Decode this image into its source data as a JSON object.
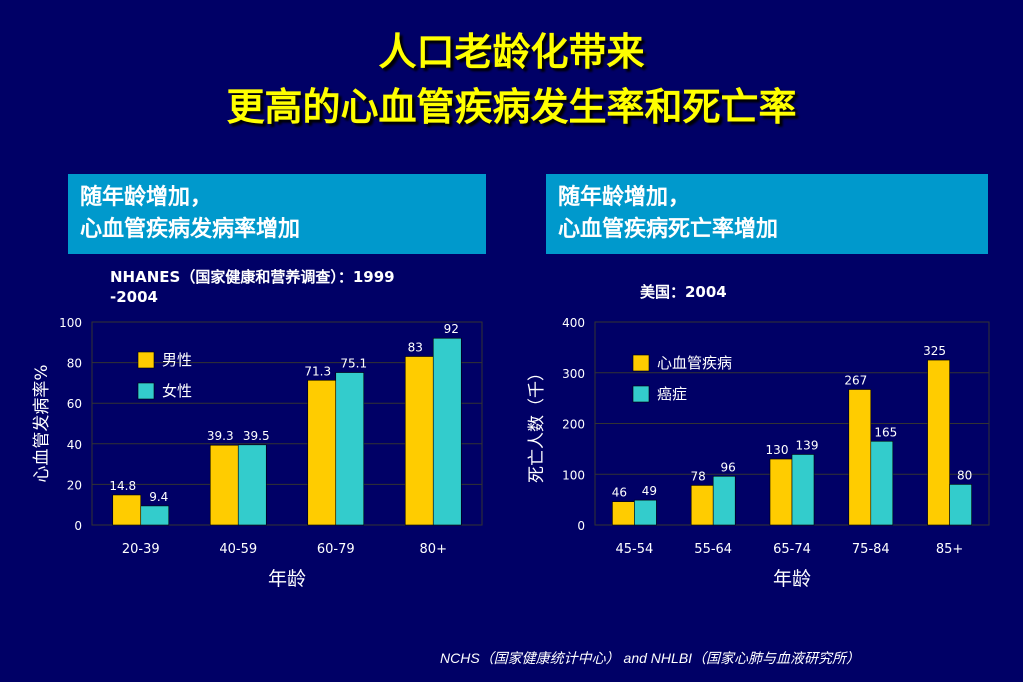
{
  "title": {
    "line1": "人口老龄化带来",
    "line2": "更高的心血管疾病发生率和死亡率"
  },
  "panels": [
    {
      "line1": "随年龄增加，",
      "line2": "心血管疾病发病率增加"
    },
    {
      "line1": "随年龄增加，",
      "line2": "心血管疾病死亡率增加"
    }
  ],
  "footer": "NCHS（国家健康统计中心） and NHLBI（国家心肺与血液研究所）",
  "colors": {
    "series1": "#ffcc00",
    "series2": "#33cccc",
    "background": "#000066",
    "panel": "#0099cc",
    "title": "#ffff00"
  },
  "chart_data": [
    {
      "type": "bar",
      "source_label": "NHANES（国家健康和营养调查）：1999-2004",
      "categories": [
        "20-39",
        "40-59",
        "60-79",
        "80+"
      ],
      "series": [
        {
          "name": "男性",
          "values": [
            14.8,
            39.3,
            71.3,
            83
          ],
          "labels": [
            "14.8",
            "39.3",
            "71.3",
            "83"
          ]
        },
        {
          "name": "女性",
          "values": [
            9.4,
            39.5,
            75.1,
            92
          ],
          "labels": [
            "9.4",
            "39.5",
            "75.1",
            "92"
          ]
        }
      ],
      "xlabel": "年龄",
      "ylabel": "心血管发病率%",
      "ylim": [
        0,
        100
      ],
      "yticks": [
        0,
        20,
        40,
        60,
        80,
        100
      ],
      "grid": true,
      "legend_position": "top-left"
    },
    {
      "type": "bar",
      "source_label": "美国：2004",
      "categories": [
        "45-54",
        "55-64",
        "65-74",
        "75-84",
        "85+"
      ],
      "series": [
        {
          "name": "心血管疾病",
          "values": [
            46,
            78,
            130,
            267,
            325
          ],
          "labels": [
            "46",
            "78",
            "130",
            "267",
            "325"
          ]
        },
        {
          "name": "癌症",
          "values": [
            49,
            96,
            139,
            165,
            80
          ],
          "labels": [
            "49",
            "96",
            "139",
            "165",
            "80"
          ]
        }
      ],
      "xlabel": "年龄",
      "ylabel": "死亡人数（千）",
      "ylim": [
        0,
        400
      ],
      "yticks": [
        0,
        100,
        200,
        300,
        400
      ],
      "grid": true,
      "legend_position": "top-left"
    }
  ]
}
